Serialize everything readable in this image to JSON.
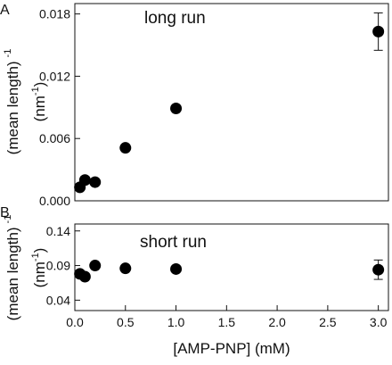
{
  "chart_data": [
    {
      "type": "scatter",
      "panel_label": "A",
      "annotation": "long run",
      "ylabel_main": "(mean length)",
      "ylabel_exp": "-1",
      "yunit_main": "(nm",
      "yunit_exp": "-1",
      "yunit_close": ")",
      "xlim": [
        0,
        3.1
      ],
      "ylim": [
        0,
        0.019
      ],
      "yticks": [
        0.0,
        0.006,
        0.012,
        0.018
      ],
      "ytick_labels": [
        "0.000",
        "0.006",
        "0.012",
        "0.018"
      ],
      "points": [
        {
          "x": 0.05,
          "y": 0.0013
        },
        {
          "x": 0.1,
          "y": 0.002
        },
        {
          "x": 0.2,
          "y": 0.0018
        },
        {
          "x": 0.5,
          "y": 0.0051
        },
        {
          "x": 1.0,
          "y": 0.0089
        },
        {
          "x": 3.0,
          "y": 0.0163,
          "err": 0.0018
        }
      ]
    },
    {
      "type": "scatter",
      "panel_label": "B",
      "annotation": "short run",
      "ylabel_main": "(mean length)",
      "ylabel_exp": "-1",
      "yunit_main": "(nm",
      "yunit_exp": "-1",
      "yunit_close": ")",
      "xlabel": "[AMP-PNP] (mM)",
      "xlim": [
        0,
        3.1
      ],
      "ylim": [
        0.025,
        0.15
      ],
      "yticks": [
        0.04,
        0.09,
        0.14
      ],
      "ytick_labels": [
        "0.04",
        "0.09",
        "0.14"
      ],
      "xticks": [
        0.0,
        0.5,
        1.0,
        1.5,
        2.0,
        2.5,
        3.0
      ],
      "xtick_labels": [
        "0.0",
        "0.5",
        "1.0",
        "1.5",
        "2.0",
        "2.5",
        "3.0"
      ],
      "points": [
        {
          "x": 0.05,
          "y": 0.078
        },
        {
          "x": 0.1,
          "y": 0.074
        },
        {
          "x": 0.2,
          "y": 0.09
        },
        {
          "x": 0.5,
          "y": 0.086
        },
        {
          "x": 1.0,
          "y": 0.085
        },
        {
          "x": 3.0,
          "y": 0.084,
          "err": 0.014
        }
      ]
    }
  ]
}
